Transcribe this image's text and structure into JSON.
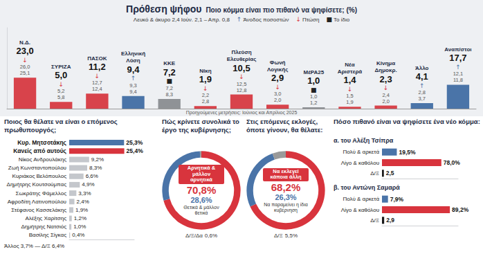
{
  "chart_data": [
    {
      "type": "bar",
      "title": "Πρόθεση ψήφου",
      "subtitle": "Ποιο κόμμα είναι πιο πιθανό να ψηφίσετε; (%)",
      "note": "Λευκό & άκυρο 2,4 Ιούν. 2,1 – Απρ. 0,8",
      "change_key": [
        {
          "symbol": "↑",
          "label": "Άνοδος ποσοστών",
          "color": "#4a74a8"
        },
        {
          "symbol": "↓",
          "label": "Πτώση",
          "color": "#d8343d"
        },
        {
          "symbol": "■",
          "label": "Το ίδιο",
          "color": "#222222"
        }
      ],
      "categories": [
        "Ν.Δ.",
        "ΣΥΡΙΖΑ",
        "ΠΑΣΟΚ",
        "Ελληνική Λύση",
        "ΚΚΕ",
        "Νίκη",
        "Πλεύση Ελευθερίας",
        "Φωνή Λογικής",
        "ΜέΡΑ25",
        "Νέα Αριστερά",
        "Κίνημα Δημοκρ.",
        "Άλλο",
        "Αναπ/στοι"
      ],
      "values": [
        23.0,
        5.0,
        11.2,
        9.4,
        7.2,
        1.9,
        10.5,
        2.9,
        1.0,
        1.4,
        2.3,
        4.1,
        17.7
      ],
      "value_labels": [
        "23,0",
        "5,0",
        "11,2",
        "9,4",
        "7,2",
        "1,9",
        "10,5",
        "2,9",
        "1,0",
        "1,4",
        "2,3",
        "4,1",
        "17,7"
      ],
      "change": [
        "↓",
        "↓",
        "↓",
        "↑",
        "■",
        "↓",
        "↓",
        "↓",
        "■",
        "↓",
        "↓",
        "↑",
        "↑"
      ],
      "previous_labels": [
        [
          "26,0",
          "25,1"
        ],
        [
          "5,2",
          "5,8"
        ],
        [
          "12,7",
          "12,4"
        ],
        [
          "9,3",
          "9,4"
        ],
        [
          "7,2",
          "8,3"
        ],
        [
          "2,2",
          "2,8"
        ],
        [
          "12,5",
          "12,8"
        ],
        [
          "3,0",
          "2,0"
        ],
        [
          "1,0",
          "1,2"
        ],
        [
          "1,5",
          "1,9"
        ],
        [
          "2,4",
          "2,0"
        ],
        [
          "2,8",
          "3,7"
        ],
        [
          "12,1",
          "11,8"
        ]
      ],
      "colors": [
        "#d8434b",
        "#d8434b",
        "#d8434b",
        "#4a74a8",
        "#8f9296",
        "#d8434b",
        "#d8434b",
        "#d8434b",
        "#8f9296",
        "#d8434b",
        "#d8434b",
        "#4a74a8",
        "#4a74a8"
      ],
      "ylim": [
        0,
        60
      ],
      "data_labels": true,
      "tick_labels": false,
      "footnote": "Προηγούμενες μετρήσεις: Ιούνιος και Απρίλιος 2025"
    },
    {
      "type": "bar",
      "orientation": "horizontal",
      "title": "Ποιος θα θέλατε να είναι ο επόμενος πρωθυπουργός;",
      "categories": [
        "Κυρ. Μητσοτάκης",
        "Κανείς από αυτούς",
        "Νίκος Ανδρουλάκης",
        "Ζωή Κωνσταντοπούλου",
        "Κυριάκος Βελόπουλος",
        "Δημήτρης Κουτσούμπας",
        "Σωκράτης Φάμελλος",
        "Αφροδίτη Λατινοπούλου",
        "Στέφανος Κασσελάκης",
        "Αλέξης Χαρίτσης",
        "Δημήτρης Νατσιός",
        "Βασίλης Σίγκας"
      ],
      "values": [
        25.3,
        25.4,
        9.2,
        8.3,
        6.6,
        4.9,
        3.3,
        2.4,
        1.9,
        1.2,
        1.0,
        0.4
      ],
      "value_labels": [
        "25,3%",
        "25,4%",
        "9,2%",
        "8,3%",
        "6,6%",
        "4,9%",
        "3,3%",
        "2,4%",
        "1,9%",
        "1,2%",
        "1,0%",
        "0,4%"
      ],
      "colors": [
        "#4a74a8",
        "#d8343d",
        "#c4c7cc",
        "#c4c7cc",
        "#c4c7cc",
        "#c4c7cc",
        "#c4c7cc",
        "#c4c7cc",
        "#c4c7cc",
        "#c4c7cc",
        "#c4c7cc",
        "#c4c7cc"
      ],
      "xlim": [
        0,
        30
      ],
      "data_labels": true,
      "tick_labels": "y",
      "footnote": "Άλλος 3,7% — Δ/Ξ 6,4%"
    },
    {
      "type": "pie",
      "title": "Πώς κρίνετε συνολικά το έργο της κυβέρνησης;",
      "categories": [
        "Αρνητικά & μάλλον αρνητικά",
        "Θετικά & μάλλον θετικά",
        "Δ/Ξ/Δα"
      ],
      "values": [
        70.8,
        28.6,
        0.6
      ],
      "value_labels": [
        "70,8%",
        "28,6%",
        "0,6%"
      ],
      "colors": [
        "#d8343d",
        "#4a74a8",
        "#9a9a9a"
      ],
      "data_labels": true
    },
    {
      "type": "pie",
      "title": "Στις επόμενες εκλογές, όποτε γίνουν, θα θέλατε:",
      "categories": [
        "Να εκλεγεί κάποια άλλη",
        "Να παραμείνει η ίδια κυβέρνηση",
        "Δ/Ξ"
      ],
      "values": [
        68.2,
        26.3,
        5.5
      ],
      "value_labels": [
        "68,2%",
        "26,3%",
        "5,5%"
      ],
      "colors": [
        "#d8343d",
        "#4a74a8",
        "#9a9a9a"
      ],
      "data_labels": true
    },
    {
      "type": "bar",
      "orientation": "horizontal",
      "title": "Πόσο πιθανό είναι να ψηφίσετε ένα νέο κόμμα:",
      "subtitle": "α. του Αλέξη Τσίπρα",
      "categories": [
        "Πολύ & αρκετά",
        "Λίγο & καθόλου",
        "Δ/Ξ"
      ],
      "values": [
        19.5,
        78.0,
        2.5
      ],
      "value_labels": [
        "19,5%",
        "78,0%",
        "2,5"
      ],
      "colors": [
        "#4a74a8",
        "#d8343d",
        "#1a1a1a"
      ],
      "xlim": [
        0,
        100
      ],
      "data_labels": true,
      "tick_labels": "y"
    },
    {
      "type": "bar",
      "orientation": "horizontal",
      "subtitle": "β. του Αντώνη Σαμαρά",
      "categories": [
        "Πολύ & αρκετά",
        "Λίγο & καθόλου",
        "Δ/Ξ"
      ],
      "values": [
        7.9,
        89.2,
        2.9
      ],
      "value_labels": [
        "7,9%",
        "89,2%",
        "2,9"
      ],
      "colors": [
        "#4a74a8",
        "#d8343d",
        "#1a1a1a"
      ],
      "xlim": [
        0,
        100
      ],
      "data_labels": true,
      "tick_labels": "y"
    }
  ]
}
